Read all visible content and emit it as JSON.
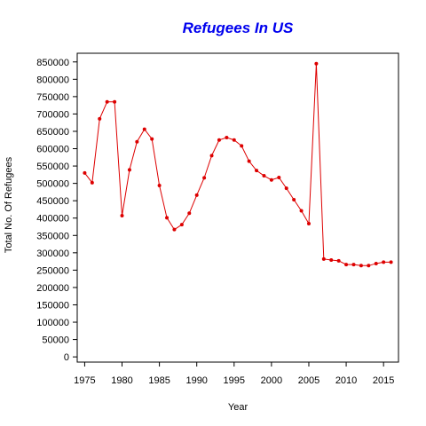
{
  "chart_data": {
    "type": "line",
    "title": "Refugees In US",
    "xlabel": "Year",
    "ylabel": "Total No. Of Refugees",
    "xlim": [
      1974,
      2017
    ],
    "ylim": [
      -15000,
      875000
    ],
    "x_ticks": [
      1975,
      1980,
      1985,
      1990,
      1995,
      2000,
      2005,
      2010,
      2015
    ],
    "y_ticks": [
      0,
      50000,
      100000,
      150000,
      200000,
      250000,
      300000,
      350000,
      400000,
      450000,
      500000,
      550000,
      600000,
      650000,
      700000,
      750000,
      800000,
      850000
    ],
    "grid": false,
    "series": [
      {
        "color": "#dd0000",
        "x": [
          1975,
          1976,
          1977,
          1978,
          1979,
          1980,
          1981,
          1982,
          1983,
          1984,
          1985,
          1986,
          1987,
          1988,
          1989,
          1990,
          1991,
          1992,
          1993,
          1994,
          1995,
          1996,
          1997,
          1998,
          1999,
          2000,
          2001,
          2002,
          2003,
          2004,
          2005,
          2006,
          2007,
          2008,
          2009,
          2010,
          2011,
          2012,
          2013,
          2014,
          2015,
          2016
        ],
        "y": [
          530000,
          502000,
          686000,
          735000,
          735000,
          407000,
          539000,
          620000,
          656000,
          628000,
          494000,
          401000,
          367000,
          381000,
          414000,
          466000,
          516000,
          580000,
          625000,
          632000,
          625000,
          608000,
          564000,
          537000,
          522000,
          510000,
          517000,
          486000,
          453000,
          421000,
          384000,
          845000,
          282000,
          279000,
          277000,
          266000,
          266000,
          263000,
          263000,
          269000,
          273000,
          273000
        ]
      }
    ]
  }
}
